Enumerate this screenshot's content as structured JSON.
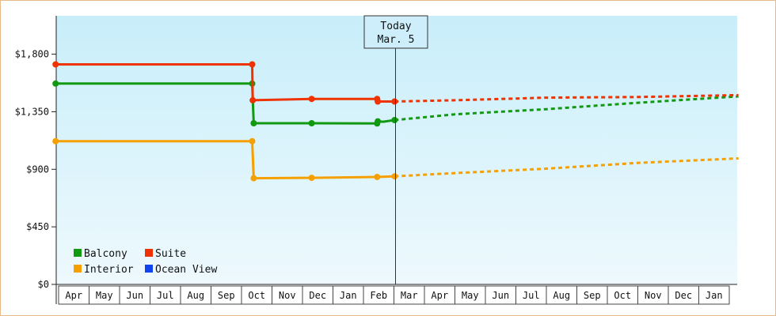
{
  "chart_data": {
    "type": "line",
    "title": "",
    "xlabel": "",
    "ylabel": "",
    "x_months": [
      "Apr",
      "May",
      "Jun",
      "Jul",
      "Aug",
      "Sep",
      "Oct",
      "Nov",
      "Dec",
      "Jan",
      "Feb",
      "Mar",
      "Apr",
      "May",
      "Jun",
      "Jul",
      "Aug",
      "Sep",
      "Oct",
      "Nov",
      "Dec",
      "Jan"
    ],
    "y_ticks": [
      "$0",
      "$450",
      "$900",
      "$1,350",
      "$1,800"
    ],
    "ylim": [
      0,
      2100
    ],
    "today_marker": {
      "line1": "Today",
      "line2": "Mar. 5"
    },
    "legend": [
      {
        "name": "Balcony",
        "color": "#119911"
      },
      {
        "name": "Suite",
        "color": "#ee3300"
      },
      {
        "name": "Interior",
        "color": "#f5a000"
      },
      {
        "name": "Ocean View",
        "color": "#1144ee"
      }
    ],
    "series": [
      {
        "name": "Balcony",
        "color": "#119911",
        "historical": [
          [
            -0.1,
            1570
          ],
          [
            6.35,
            1570
          ],
          [
            6.37,
            1450
          ],
          [
            6.4,
            1260
          ],
          [
            8.3,
            1260
          ],
          [
            10.45,
            1258
          ],
          [
            10.47,
            1275
          ],
          [
            10.65,
            1272
          ],
          [
            11.02,
            1285
          ]
        ],
        "markers": [
          [
            -0.1,
            1570
          ],
          [
            6.35,
            1570
          ],
          [
            6.4,
            1260
          ],
          [
            8.3,
            1260
          ],
          [
            10.45,
            1258
          ],
          [
            10.47,
            1275
          ],
          [
            11.02,
            1285
          ]
        ],
        "forecast": [
          [
            11.02,
            1285
          ],
          [
            13,
            1330
          ],
          [
            16,
            1370
          ],
          [
            19,
            1420
          ],
          [
            22.3,
            1470
          ]
        ]
      },
      {
        "name": "Suite",
        "color": "#ee3300",
        "historical": [
          [
            -0.1,
            1720
          ],
          [
            6.35,
            1720
          ],
          [
            6.37,
            1440
          ],
          [
            8.3,
            1450
          ],
          [
            10.45,
            1450
          ],
          [
            10.47,
            1430
          ],
          [
            11.02,
            1430
          ]
        ],
        "markers": [
          [
            -0.1,
            1720
          ],
          [
            6.35,
            1720
          ],
          [
            6.37,
            1440
          ],
          [
            8.3,
            1450
          ],
          [
            10.45,
            1450
          ],
          [
            10.47,
            1430
          ],
          [
            11.02,
            1430
          ]
        ],
        "forecast": [
          [
            11.02,
            1430
          ],
          [
            13,
            1440
          ],
          [
            16,
            1460
          ],
          [
            19,
            1465
          ],
          [
            22.3,
            1480
          ]
        ]
      },
      {
        "name": "Interior",
        "color": "#f5a000",
        "historical": [
          [
            -0.1,
            1120
          ],
          [
            6.35,
            1120
          ],
          [
            6.4,
            830
          ],
          [
            8.3,
            833
          ],
          [
            10.45,
            840
          ],
          [
            11.02,
            845
          ]
        ],
        "markers": [
          [
            -0.1,
            1120
          ],
          [
            6.35,
            1120
          ],
          [
            6.4,
            830
          ],
          [
            8.3,
            833
          ],
          [
            10.45,
            840
          ],
          [
            11.02,
            845
          ]
        ],
        "forecast": [
          [
            11.02,
            845
          ],
          [
            13,
            870
          ],
          [
            16,
            905
          ],
          [
            19,
            950
          ],
          [
            22.3,
            985
          ]
        ]
      },
      {
        "name": "Ocean View",
        "color": "#1144ee",
        "historical": [],
        "markers": [],
        "forecast": []
      }
    ]
  }
}
